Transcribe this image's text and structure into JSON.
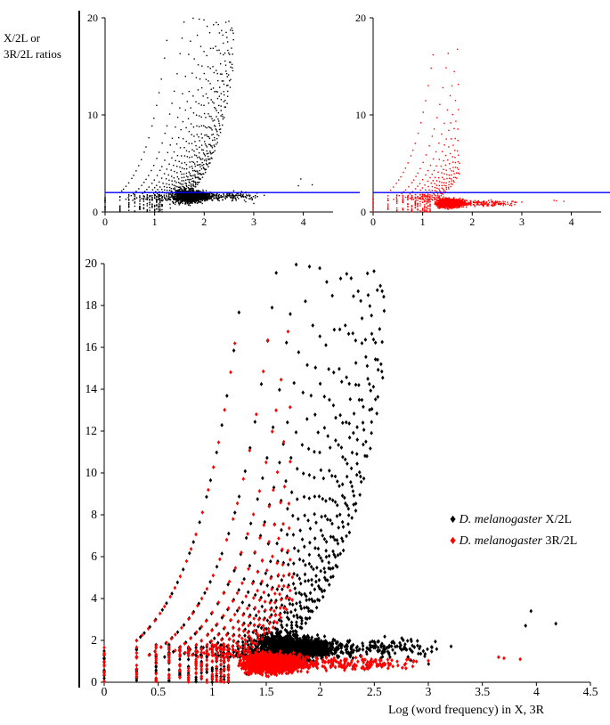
{
  "y_side_label": [
    "X/2L or",
    "3R/2L ratios"
  ],
  "main_xlabel": "Log (word frequency) in X, 3R",
  "legend": [
    {
      "species": "D. melanogaster",
      "ratio": "X/2L",
      "color": "#000000"
    },
    {
      "species": "D. melanogaster",
      "ratio": "3R/2L",
      "color": "#ff0000"
    }
  ],
  "colors": {
    "x_ratio": "#000000",
    "r3_ratio": "#ff0000",
    "threshold_line": "#0000ff"
  },
  "chart_data": [
    {
      "type": "scatter",
      "panel": "top-left inset",
      "series": [
        {
          "values_desc": "X/2L",
          "color": "#000000"
        }
      ],
      "xticks": [
        "0",
        "1",
        "2",
        "3",
        "4"
      ],
      "yticks": [
        "0",
        "10",
        "20"
      ],
      "xlim": [
        0,
        4.6
      ],
      "ylim": [
        0,
        20
      ],
      "hline": 2
    },
    {
      "type": "scatter",
      "panel": "top-right inset",
      "series": [
        {
          "values_desc": "3R/2L",
          "color": "#ff0000"
        }
      ],
      "xticks": [
        "0",
        "1",
        "2",
        "3",
        "4"
      ],
      "yticks": [
        "0",
        "10",
        "20"
      ],
      "xlim": [
        0,
        4.6
      ],
      "ylim": [
        0,
        20
      ],
      "hline": 2
    },
    {
      "type": "scatter",
      "panel": "main",
      "series": [
        {
          "name": "D. melanogaster X/2L",
          "color": "#000000"
        },
        {
          "name": "D. melanogaster 3R/2L",
          "color": "#ff0000"
        }
      ],
      "xticks": [
        "0",
        "0.5",
        "1",
        "1.5",
        "2",
        "2.5",
        "3",
        "3.5",
        "4",
        "4.5"
      ],
      "yticks": [
        "0",
        "2",
        "4",
        "6",
        "8",
        "10",
        "12",
        "14",
        "16",
        "18",
        "20"
      ],
      "xlim": [
        0,
        4.5
      ],
      "ylim": [
        0,
        20
      ],
      "xlabel": "Log (word frequency) in X, 3R",
      "legend_position": "right"
    }
  ]
}
